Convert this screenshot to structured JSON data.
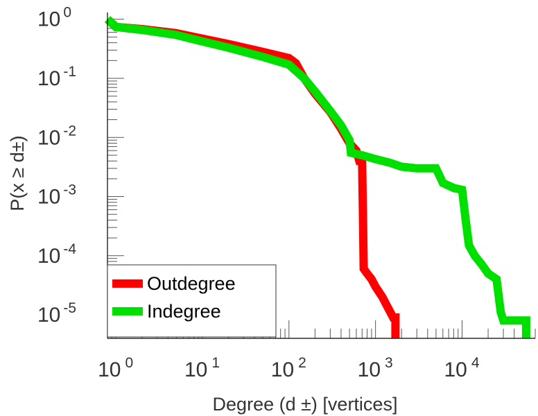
{
  "chart_data": {
    "type": "line",
    "title": "",
    "xlabel": "Degree (d ±) [vertices]",
    "ylabel": "P(x ≥ d±)",
    "xscale": "log",
    "yscale": "log",
    "xlim": [
      0.8,
      70000
    ],
    "ylim": [
      4e-06,
      1.3
    ],
    "x_ticks": [
      {
        "value": 1,
        "base": "10",
        "exp": "0"
      },
      {
        "value": 10,
        "base": "10",
        "exp": "1"
      },
      {
        "value": 100,
        "base": "10",
        "exp": "2"
      },
      {
        "value": 1000,
        "base": "10",
        "exp": "3"
      },
      {
        "value": 10000,
        "base": "10",
        "exp": "4"
      }
    ],
    "y_ticks": [
      {
        "value": 1,
        "base": "10",
        "exp": "0"
      },
      {
        "value": 0.1,
        "base": "10",
        "exp": "-1"
      },
      {
        "value": 0.01,
        "base": "10",
        "exp": "-2"
      },
      {
        "value": 0.001,
        "base": "10",
        "exp": "-3"
      },
      {
        "value": 0.0001,
        "base": "10",
        "exp": "-4"
      },
      {
        "value": 1e-05,
        "base": "10",
        "exp": "-5"
      }
    ],
    "legend_position": "bottom-left",
    "series": [
      {
        "name": "Outdegree",
        "color": "#ff0000",
        "points": [
          [
            0.8,
            1.0
          ],
          [
            1.0,
            0.74
          ],
          [
            2,
            0.68
          ],
          [
            5,
            0.58
          ],
          [
            10,
            0.47
          ],
          [
            20,
            0.38
          ],
          [
            50,
            0.28
          ],
          [
            100,
            0.22
          ],
          [
            120,
            0.18
          ],
          [
            150,
            0.1
          ],
          [
            200,
            0.055
          ],
          [
            300,
            0.027
          ],
          [
            400,
            0.014
          ],
          [
            500,
            0.008
          ],
          [
            600,
            0.006
          ],
          [
            650,
            0.004
          ],
          [
            700,
            0.004
          ],
          [
            720,
            0.0003
          ],
          [
            730,
            6e-05
          ],
          [
            800,
            5e-05
          ],
          [
            900,
            4e-05
          ],
          [
            1000,
            3e-05
          ],
          [
            1200,
            2e-05
          ],
          [
            1400,
            1.3e-05
          ],
          [
            1600,
            9e-06
          ],
          [
            1700,
            9e-06
          ],
          [
            1700,
            4e-06
          ]
        ]
      },
      {
        "name": "Indegree",
        "color": "#00e000",
        "points": [
          [
            0.8,
            1.0
          ],
          [
            1.0,
            0.74
          ],
          [
            2,
            0.66
          ],
          [
            5,
            0.54
          ],
          [
            10,
            0.42
          ],
          [
            20,
            0.33
          ],
          [
            50,
            0.23
          ],
          [
            100,
            0.17
          ],
          [
            150,
            0.1
          ],
          [
            200,
            0.06
          ],
          [
            300,
            0.028
          ],
          [
            400,
            0.016
          ],
          [
            500,
            0.009
          ],
          [
            520,
            0.0055
          ],
          [
            700,
            0.005
          ],
          [
            1000,
            0.0043
          ],
          [
            1500,
            0.0037
          ],
          [
            2000,
            0.0032
          ],
          [
            3000,
            0.003
          ],
          [
            5000,
            0.003
          ],
          [
            6000,
            0.0017
          ],
          [
            8000,
            0.0014
          ],
          [
            10000,
            0.0013
          ],
          [
            11000,
            0.0004
          ],
          [
            12000,
            0.00015
          ],
          [
            14000,
            0.0001
          ],
          [
            17000,
            7e-05
          ],
          [
            20000,
            5e-05
          ],
          [
            25000,
            4e-05
          ],
          [
            28000,
            1.1e-05
          ],
          [
            30000,
            8e-06
          ],
          [
            50000,
            8e-06
          ],
          [
            55000,
            8e-06
          ],
          [
            55000,
            4e-06
          ]
        ]
      }
    ]
  }
}
